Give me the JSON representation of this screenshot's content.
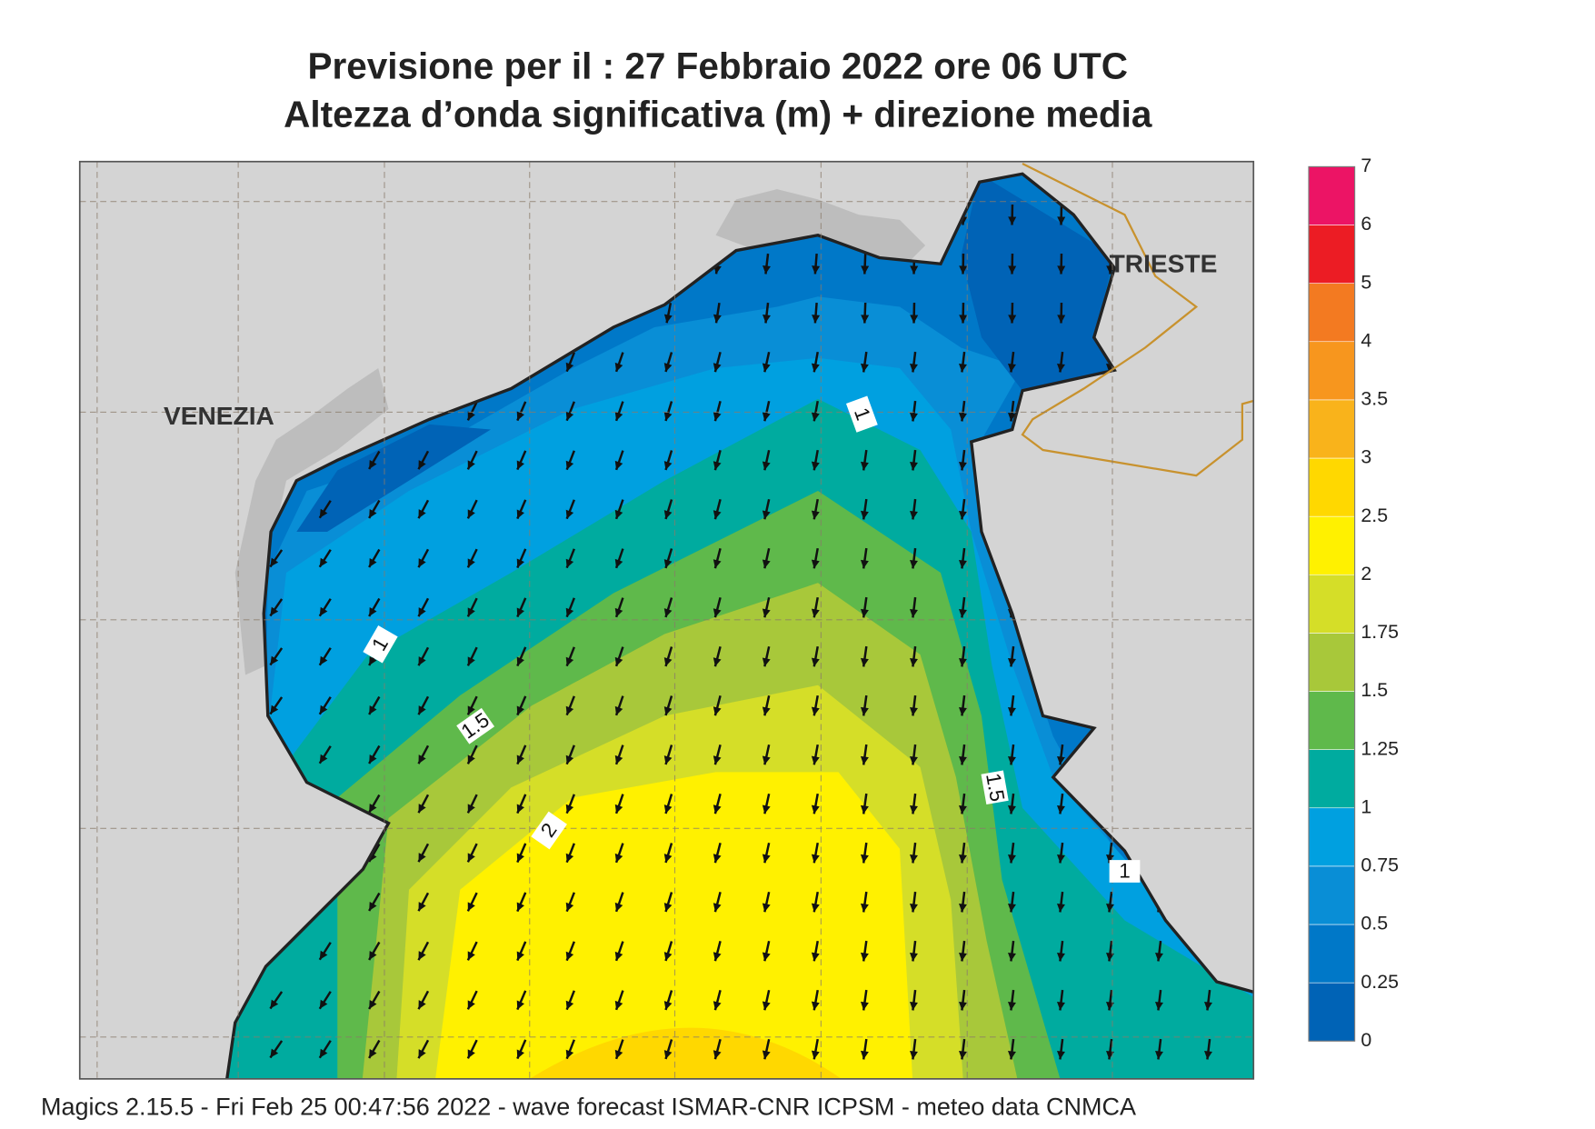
{
  "title": {
    "line1": "Previsione per il  :  27  Febbraio 2022   ore 06 UTC",
    "line2": "Altezza d’onda significativa (m) + direzione media"
  },
  "map": {
    "labels": [
      "VENEZIA",
      "TRIESTE"
    ],
    "contour_labels": [
      "1",
      "1",
      "1.5",
      "1.5",
      "2",
      "1"
    ]
  },
  "colorbar": {
    "levels": [
      0,
      0.25,
      0.5,
      0.75,
      1,
      1.25,
      1.5,
      1.75,
      2,
      2.5,
      3,
      3.5,
      4,
      5,
      6,
      7
    ],
    "colors": [
      "#0063b6",
      "#0078c8",
      "#098ed6",
      "#00a0e0",
      "#00ab9f",
      "#5fb94b",
      "#a8c83a",
      "#d5de28",
      "#fff100",
      "#ffd800",
      "#f9b31b",
      "#f7961e",
      "#f37a21",
      "#ec1c24",
      "#ec1465"
    ]
  },
  "footer": "Magics 2.15.5 - Fri Feb 25 00:47:56 2022 - wave forecast  ISMAR-CNR  ICPSM - meteo data    CNMCA"
}
